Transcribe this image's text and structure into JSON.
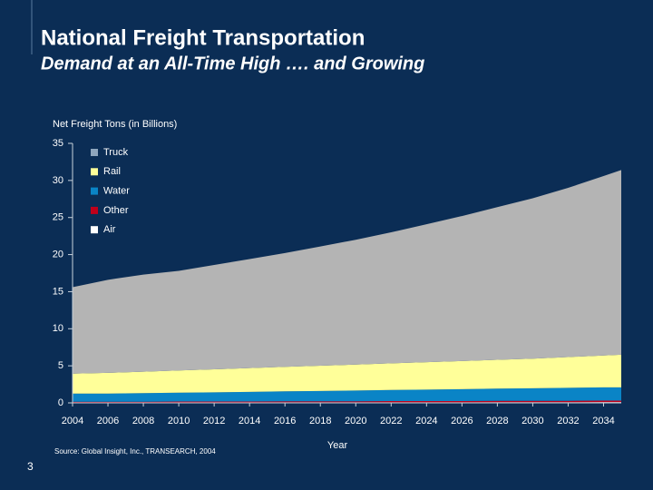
{
  "slide_number": 3,
  "chart_data": {
    "type": "stacked-area",
    "title": "National Freight Transportation",
    "subtitle": "Demand at an All-Time High …. and Growing",
    "y_label": "Net Freight Tons (in Billions)",
    "x_label": "Year",
    "source": "Source: Global Insight, Inc., TRANSEARCH, 2004",
    "x": [
      2004,
      2006,
      2008,
      2010,
      2012,
      2014,
      2016,
      2018,
      2020,
      2022,
      2024,
      2026,
      2028,
      2030,
      2032,
      2034,
      2035
    ],
    "xlim": [
      2004,
      2035
    ],
    "xticks": [
      2004,
      2006,
      2008,
      2010,
      2012,
      2014,
      2016,
      2018,
      2020,
      2022,
      2024,
      2026,
      2028,
      2030,
      2032,
      2034
    ],
    "ylim": [
      0,
      35
    ],
    "yticks": [
      0,
      5,
      10,
      15,
      20,
      25,
      30,
      35
    ],
    "series": [
      {
        "name": "Truck",
        "color": "#b4b4b4",
        "legend_color": "#8fa6bd",
        "values": [
          11.65,
          12.55,
          13.09,
          13.42,
          14.07,
          14.71,
          15.34,
          16.09,
          16.83,
          17.66,
          18.61,
          19.55,
          20.58,
          21.63,
          22.82,
          24.2,
          24.9
        ]
      },
      {
        "name": "Rail",
        "color": "#ffff99",
        "values": [
          2.7,
          2.8,
          2.9,
          3.0,
          3.1,
          3.2,
          3.3,
          3.4,
          3.5,
          3.6,
          3.7,
          3.8,
          3.9,
          4.0,
          4.15,
          4.3,
          4.4
        ]
      },
      {
        "name": "Water",
        "color": "#0a84c6",
        "values": [
          1.1,
          1.1,
          1.15,
          1.2,
          1.25,
          1.3,
          1.35,
          1.4,
          1.45,
          1.5,
          1.55,
          1.6,
          1.65,
          1.7,
          1.75,
          1.8,
          1.8
        ]
      },
      {
        "name": "Other",
        "color": "#c0001a",
        "values": [
          0.1,
          0.1,
          0.11,
          0.12,
          0.12,
          0.13,
          0.14,
          0.14,
          0.15,
          0.16,
          0.16,
          0.17,
          0.18,
          0.18,
          0.19,
          0.2,
          0.2
        ]
      },
      {
        "name": "Air",
        "color": "#ffffff",
        "values": [
          0.05,
          0.05,
          0.05,
          0.06,
          0.06,
          0.06,
          0.07,
          0.07,
          0.07,
          0.08,
          0.08,
          0.08,
          0.09,
          0.09,
          0.09,
          0.1,
          0.1
        ]
      }
    ]
  }
}
